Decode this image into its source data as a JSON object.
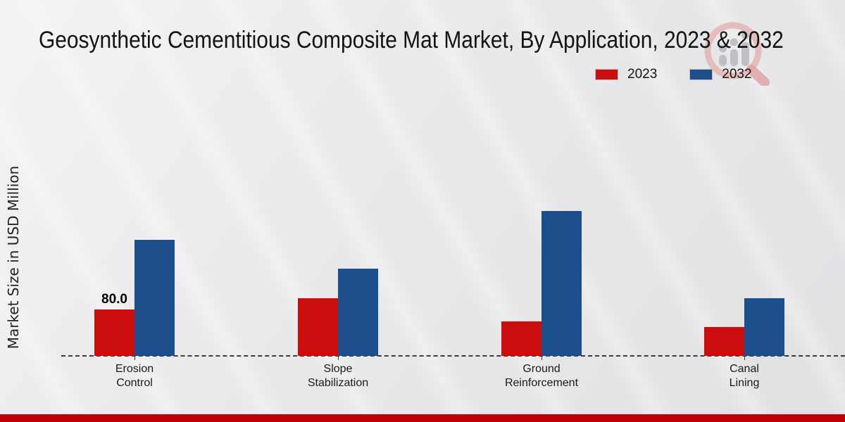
{
  "title": "Geosynthetic Cementitious Composite Mat Market, By Application, 2023 & 2032",
  "y_axis_label": "Market Size in USD Million",
  "legend": [
    {
      "label": "2023",
      "color": "#cc0d0e"
    },
    {
      "label": "2032",
      "color": "#1c4e89"
    }
  ],
  "watermark_icon": "magnifier-bar-chart-logo",
  "footer": {
    "bar_color": "#c00007"
  },
  "chart_data": {
    "type": "bar",
    "title": "Geosynthetic Cementitious Composite Mat Market, By Application, 2023 & 2032",
    "xlabel": "",
    "ylabel": "Market Size in USD Million",
    "categories": [
      "Erosion Control",
      "Slope Stabilization",
      "Ground Reinforcement",
      "Canal Lining"
    ],
    "xtick_labels": [
      "Erosion\nControl",
      "Slope\nStabilization",
      "Ground\nReinforcement",
      "Canal\nLining"
    ],
    "series": [
      {
        "name": "2023",
        "color": "#cc0d0e",
        "values": [
          80.0,
          100.0,
          60.0,
          50.0
        ]
      },
      {
        "name": "2032",
        "color": "#1c4e89",
        "values": [
          200.0,
          150.0,
          250.0,
          100.0
        ]
      }
    ],
    "data_labels": [
      {
        "series": "2023",
        "category_index": 0,
        "text": "80.0"
      }
    ],
    "ylim": [
      0,
      260
    ],
    "grid": false,
    "legend_position": "top-right",
    "baseline_style": "dashed",
    "y_axis_ticks_visible": false
  }
}
